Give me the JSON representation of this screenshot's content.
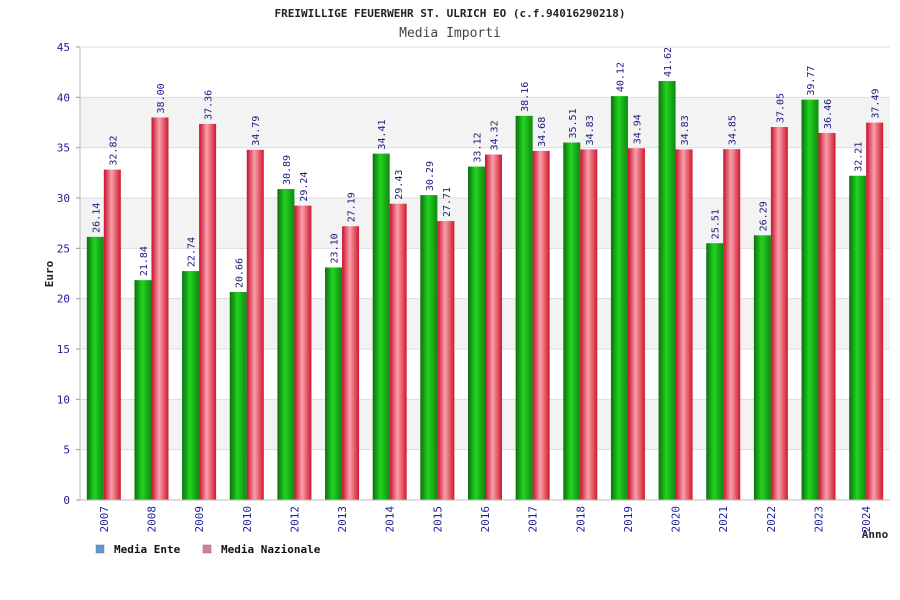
{
  "chart_data": {
    "type": "bar",
    "title": "FREIWILLIGE FEUERWEHR ST. ULRICH EO (c.f.94016290218)",
    "subtitle": "Media Importi",
    "xlabel": "Anno",
    "ylabel": "Euro",
    "ylim": [
      0,
      45
    ],
    "yticks": [
      0,
      5,
      10,
      15,
      20,
      25,
      30,
      35,
      40,
      45
    ],
    "grid": "horizontal bands",
    "legend_position": "bottom-left",
    "categories": [
      "2007",
      "2008",
      "2009",
      "2010",
      "2012",
      "2013",
      "2014",
      "2015",
      "2016",
      "2017",
      "2018",
      "2019",
      "2020",
      "2021",
      "2022",
      "2023",
      "2024"
    ],
    "series": [
      {
        "name": "Media Ente",
        "color": "#1fa81f",
        "legend_color": "#5b9bd5",
        "values": [
          26.14,
          21.84,
          22.74,
          20.66,
          30.89,
          23.1,
          34.41,
          30.29,
          33.12,
          38.16,
          35.51,
          40.12,
          41.62,
          25.51,
          26.29,
          39.77,
          32.21
        ],
        "labels": [
          "26.14",
          "21.84",
          "22.74",
          "20.66",
          "30.89",
          "23.10",
          "34.41",
          "30.29",
          "33.12",
          "38.16",
          "35.51",
          "40.12",
          "41.62",
          "25.51",
          "26.29",
          "39.77",
          "32.21"
        ]
      },
      {
        "name": "Media Nazionale",
        "color": "#e8344a",
        "legend_color": "#d97a9a",
        "values": [
          32.82,
          38.0,
          37.36,
          34.79,
          29.24,
          27.19,
          29.43,
          27.71,
          34.32,
          34.68,
          34.83,
          34.94,
          34.83,
          34.85,
          37.05,
          36.46,
          37.49
        ],
        "labels": [
          "32.82",
          "38.00",
          "37.36",
          "34.79",
          "29.24",
          "27.19",
          "29.43",
          "27.71",
          "34.32",
          "34.68",
          "34.83",
          "34.94",
          "34.83",
          "34.85",
          "37.05",
          "36.46",
          "37.49"
        ]
      }
    ]
  }
}
